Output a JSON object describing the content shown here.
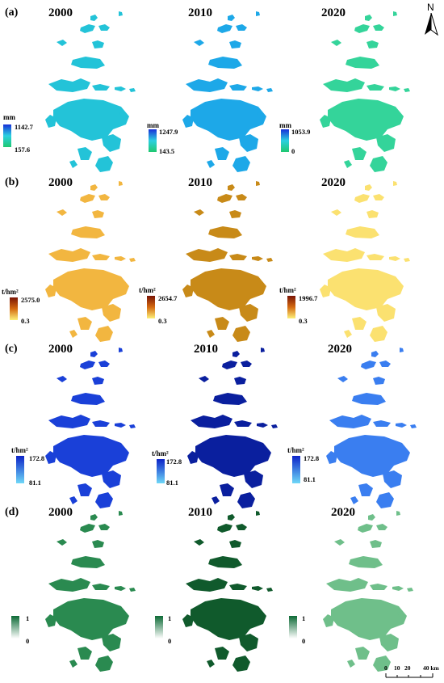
{
  "north_label": "N",
  "scale_bar": {
    "ticks": [
      "0",
      "10",
      "20",
      "40 km"
    ]
  },
  "panels": [
    {
      "label": "(a)",
      "years": [
        "2000",
        "2010",
        "2020"
      ],
      "colors": [
        "#23c3d8",
        "#1da8e8",
        "#34d49a"
      ],
      "legends": [
        {
          "unit": "mm",
          "max": "1142.7",
          "min": "157.6"
        },
        {
          "unit": "mm",
          "max": "1247.9",
          "min": "143.5"
        },
        {
          "unit": "mm",
          "max": "1053.9",
          "min": "0"
        }
      ]
    },
    {
      "label": "(b)",
      "years": [
        "2000",
        "2010",
        "2020"
      ],
      "colors": [
        "#f2b640",
        "#c88a18",
        "#fbe170"
      ],
      "legends": [
        {
          "unit": "t/hm²",
          "max": "2575.0",
          "min": "0.3"
        },
        {
          "unit": "t/hm²",
          "max": "2654.7",
          "min": "0.3"
        },
        {
          "unit": "t/hm²",
          "max": "1996.7",
          "min": "0.3"
        }
      ]
    },
    {
      "label": "(c)",
      "years": [
        "2000",
        "2010",
        "2020"
      ],
      "colors": [
        "#1a40d8",
        "#0a1f9e",
        "#3a7ef0"
      ],
      "legends": [
        {
          "unit": "t/hm²",
          "max": "172.8",
          "min": "81.1"
        },
        {
          "unit": "t/hm²",
          "max": "172.8",
          "min": "81.1"
        },
        {
          "unit": "t/hm²",
          "max": "172.8",
          "min": "81.1"
        }
      ]
    },
    {
      "label": "(d)",
      "years": [
        "2000",
        "2010",
        "2020"
      ],
      "colors": [
        "#2a8a50",
        "#105a2c",
        "#6fbf8a"
      ],
      "legends": [
        {
          "unit": "",
          "max": "1",
          "min": "0"
        },
        {
          "unit": "",
          "max": "1",
          "min": "0"
        },
        {
          "unit": "",
          "max": "1",
          "min": "0"
        }
      ]
    }
  ]
}
